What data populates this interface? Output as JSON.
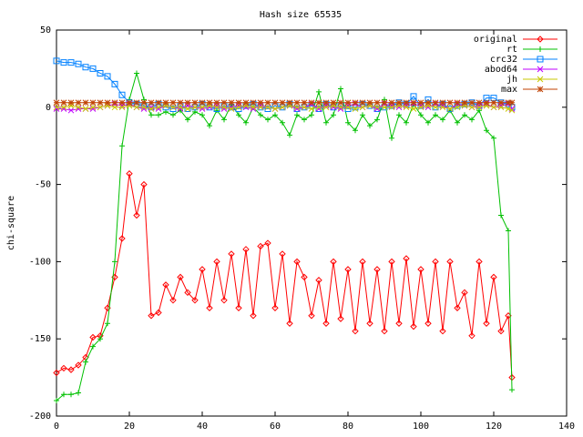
{
  "chart_data": {
    "type": "line",
    "title": "Hash size 65535",
    "y_label": "chi-square",
    "x": [
      0,
      2,
      4,
      6,
      8,
      10,
      12,
      14,
      16,
      18,
      20,
      22,
      24,
      26,
      28,
      30,
      32,
      34,
      36,
      38,
      40,
      42,
      44,
      46,
      48,
      50,
      52,
      54,
      56,
      58,
      60,
      62,
      64,
      66,
      68,
      70,
      72,
      74,
      76,
      78,
      80,
      82,
      84,
      86,
      88,
      90,
      92,
      94,
      96,
      98,
      100,
      102,
      104,
      106,
      108,
      110,
      112,
      114,
      116,
      118,
      120,
      122,
      124,
      125
    ],
    "series": [
      {
        "name": "original",
        "color": "#ff0000",
        "marker": "diamond",
        "values": [
          -172,
          -169,
          -170,
          -167,
          -162,
          -149,
          -148,
          -130,
          -110,
          -85,
          -43,
          -70,
          -50,
          -135,
          -133,
          -115,
          -125,
          -110,
          -120,
          -125,
          -105,
          -130,
          -100,
          -125,
          -95,
          -130,
          -92,
          -135,
          -90,
          -88,
          -130,
          -95,
          -140,
          -100,
          -110,
          -135,
          -112,
          -140,
          -100,
          -137,
          -105,
          -145,
          -100,
          -140,
          -105,
          -145,
          -100,
          -140,
          -98,
          -142,
          -105,
          -140,
          -100,
          -145,
          -100,
          -130,
          -120,
          -148,
          -100,
          -140,
          -110,
          -145,
          -135,
          -175
        ]
      },
      {
        "name": "rt",
        "color": "#00c000",
        "marker": "plus",
        "values": [
          -190,
          -186,
          -186,
          -185,
          -165,
          -155,
          -150,
          -140,
          -100,
          -25,
          5,
          22,
          5,
          -5,
          -5,
          -3,
          -5,
          -2,
          -8,
          -3,
          -5,
          -12,
          -2,
          -8,
          2,
          -5,
          -10,
          0,
          -5,
          -8,
          -5,
          -10,
          -18,
          -5,
          -8,
          -5,
          10,
          -10,
          -5,
          12,
          -10,
          -15,
          -5,
          -12,
          -8,
          5,
          -20,
          -5,
          -10,
          2,
          -5,
          -10,
          -5,
          -8,
          -2,
          -10,
          -5,
          -8,
          -2,
          -15,
          -20,
          -70,
          -80,
          -183
        ]
      },
      {
        "name": "crc32",
        "color": "#0080ff",
        "marker": "square",
        "values": [
          30,
          29,
          29,
          28,
          26,
          25,
          22,
          20,
          15,
          8,
          3,
          2,
          1,
          0,
          2,
          0,
          -1,
          1,
          -1,
          0,
          2,
          0,
          -1,
          1,
          0,
          -1,
          1,
          2,
          0,
          -1,
          1,
          0,
          2,
          -1,
          0,
          1,
          -1,
          2,
          0,
          1,
          -1,
          0,
          2,
          1,
          -1,
          0,
          1,
          3,
          2,
          7,
          1,
          5,
          0,
          2,
          -1,
          1,
          2,
          3,
          1,
          6,
          6,
          3,
          2,
          0
        ]
      },
      {
        "name": "abod64",
        "color": "#c000ff",
        "marker": "cross",
        "values": [
          -1,
          -1,
          -2,
          -1,
          -1,
          -1,
          0,
          1,
          2,
          1,
          2,
          0,
          -1,
          0,
          -1,
          1,
          0,
          -1,
          1,
          0,
          -1,
          0,
          1,
          -1,
          0,
          1,
          0,
          -1,
          1,
          0,
          -1,
          0,
          1,
          -1,
          0,
          2,
          -1,
          1,
          0,
          -1,
          1,
          2,
          0,
          1,
          -1,
          2,
          1,
          0,
          1,
          2,
          1,
          0,
          2,
          1,
          -1,
          2,
          1,
          0,
          1,
          2,
          0,
          1,
          2,
          -1
        ]
      },
      {
        "name": "jh",
        "color": "#c8c800",
        "marker": "cross",
        "values": [
          0,
          0,
          1,
          0,
          -1,
          0,
          0,
          1,
          0,
          0,
          1,
          0,
          0,
          -1,
          0,
          1,
          0,
          0,
          -1,
          0,
          0,
          1,
          0,
          0,
          -1,
          0,
          1,
          0,
          0,
          0,
          -1,
          0,
          1,
          0,
          0,
          -1,
          0,
          0,
          1,
          0,
          0,
          -1,
          0,
          1,
          0,
          0,
          0,
          1,
          0,
          -1,
          0,
          1,
          0,
          0,
          -1,
          0,
          1,
          0,
          0,
          1,
          0,
          0,
          -1,
          -2
        ]
      },
      {
        "name": "max",
        "color": "#c04000",
        "marker": "star",
        "values": [
          3,
          3,
          3,
          3,
          3,
          3,
          3,
          3,
          3,
          3,
          3,
          3,
          3,
          3,
          3,
          3,
          3,
          3,
          3,
          3,
          3,
          3,
          3,
          3,
          3,
          3,
          3,
          3,
          3,
          3,
          3,
          3,
          3,
          3,
          3,
          3,
          3,
          3,
          3,
          3,
          3,
          3,
          3,
          3,
          3,
          3,
          3,
          3,
          3,
          3,
          3,
          3,
          3,
          3,
          3,
          3,
          3,
          3,
          3,
          3,
          3,
          3,
          3,
          3
        ]
      }
    ],
    "xlim": [
      0,
      140
    ],
    "xticks": [
      0,
      20,
      40,
      60,
      80,
      100,
      120,
      140
    ],
    "ylim": [
      -200,
      50
    ],
    "yticks": [
      -200,
      -150,
      -100,
      -50,
      0,
      50
    ],
    "legend": "top-right"
  }
}
